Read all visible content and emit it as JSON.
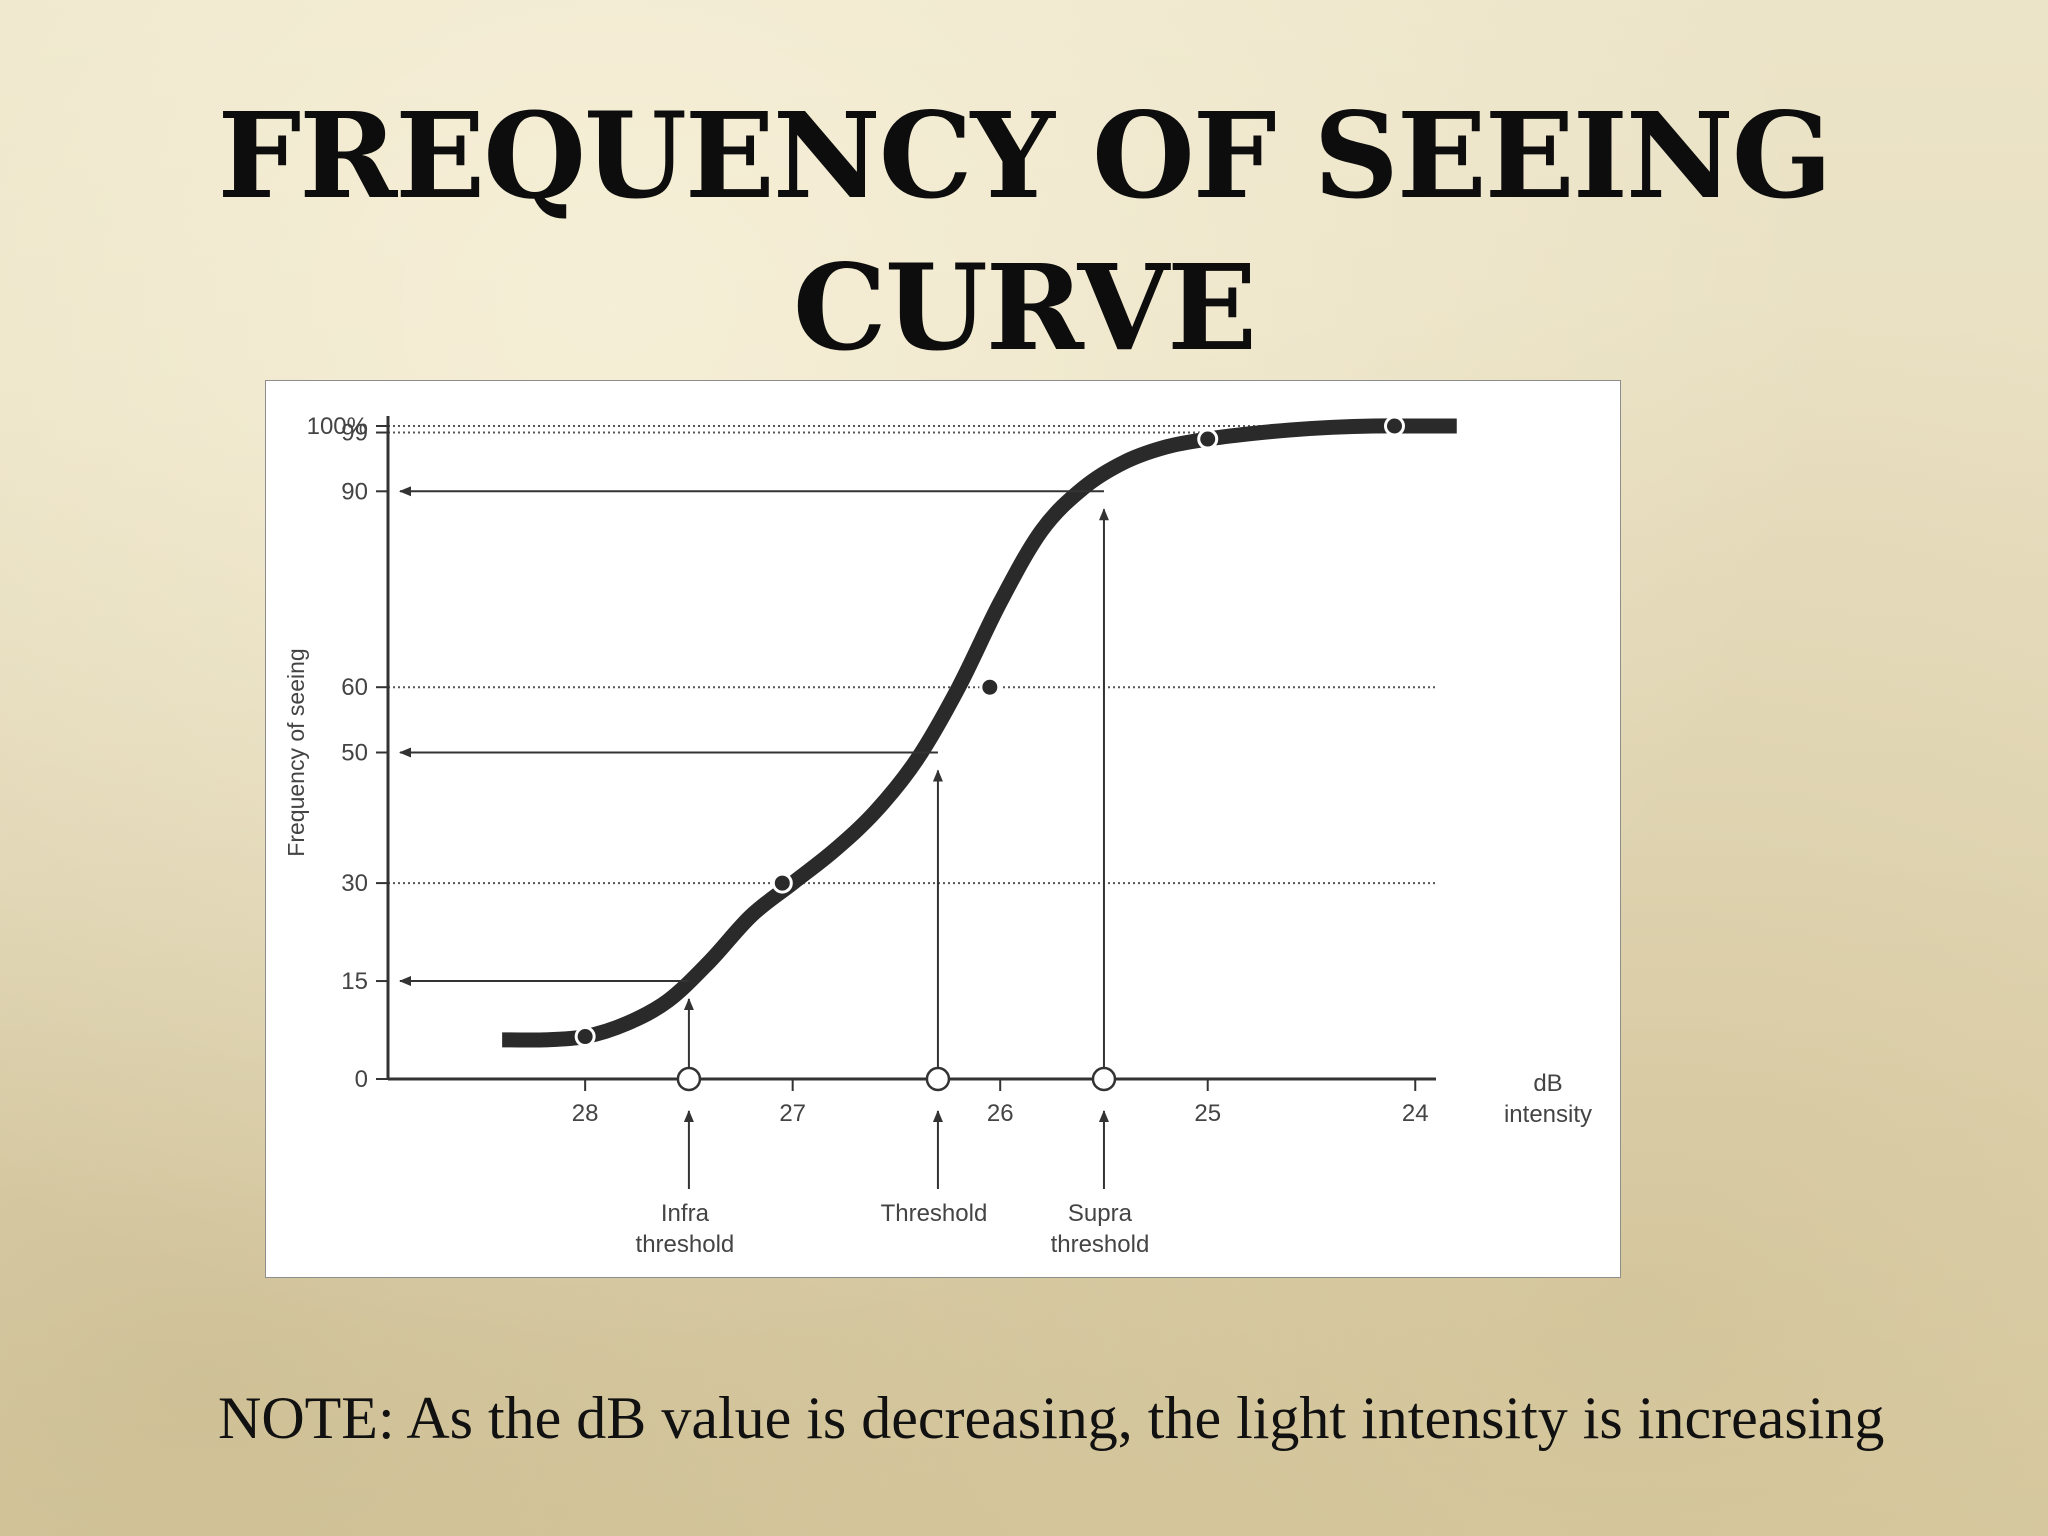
{
  "title": {
    "line1": "FREQUENCY OF SEEING",
    "line2": "CURVE"
  },
  "note": "NOTE:  As the dB value is decreasing, the light intensity is increasing",
  "chart_data": {
    "type": "line",
    "title": "",
    "ylabel": "Frequency of seeing",
    "xlabel": "dB intensity",
    "xlabel_lines": [
      "dB",
      "intensity"
    ],
    "x_reversed": true,
    "xlim": [
      28.95,
      23.9
    ],
    "ylim": [
      0,
      100
    ],
    "x_ticks": [
      28,
      27,
      26,
      25,
      24
    ],
    "y_ticks": [
      {
        "value": 0,
        "label": "0"
      },
      {
        "value": 15,
        "label": "15"
      },
      {
        "value": 30,
        "label": "30"
      },
      {
        "value": 50,
        "label": "50"
      },
      {
        "value": 60,
        "label": "60"
      },
      {
        "value": 90,
        "label": "90"
      },
      {
        "value": 99,
        "label": "99"
      },
      {
        "value": 100,
        "label": "100%"
      }
    ],
    "curve": [
      {
        "x": 28.4,
        "y": 6
      },
      {
        "x": 28.2,
        "y": 6
      },
      {
        "x": 28.0,
        "y": 6.5
      },
      {
        "x": 27.8,
        "y": 8.5
      },
      {
        "x": 27.6,
        "y": 12
      },
      {
        "x": 27.4,
        "y": 18
      },
      {
        "x": 27.2,
        "y": 25
      },
      {
        "x": 27.0,
        "y": 30
      },
      {
        "x": 26.8,
        "y": 35
      },
      {
        "x": 26.6,
        "y": 41
      },
      {
        "x": 26.4,
        "y": 49
      },
      {
        "x": 26.2,
        "y": 60
      },
      {
        "x": 26.0,
        "y": 73
      },
      {
        "x": 25.8,
        "y": 84
      },
      {
        "x": 25.6,
        "y": 90.5
      },
      {
        "x": 25.4,
        "y": 94.5
      },
      {
        "x": 25.2,
        "y": 96.8
      },
      {
        "x": 25.0,
        "y": 98
      },
      {
        "x": 24.8,
        "y": 98.8
      },
      {
        "x": 24.6,
        "y": 99.4
      },
      {
        "x": 24.4,
        "y": 99.8
      },
      {
        "x": 24.2,
        "y": 100
      },
      {
        "x": 24.0,
        "y": 100
      },
      {
        "x": 23.8,
        "y": 100
      }
    ],
    "marked_points": [
      {
        "x": 28.0,
        "y": 6.5
      },
      {
        "x": 27.05,
        "y": 30
      },
      {
        "x": 26.05,
        "y": 60
      },
      {
        "x": 25.0,
        "y": 98
      },
      {
        "x": 24.1,
        "y": 100
      }
    ],
    "dotted_levels": [
      100,
      99,
      60,
      30
    ],
    "annotations": [
      {
        "name": "infra-threshold",
        "x": 27.5,
        "y": 15,
        "label_lines": [
          "Infra",
          "threshold"
        ]
      },
      {
        "name": "threshold",
        "x": 26.3,
        "y": 50,
        "label_lines": [
          "Threshold"
        ]
      },
      {
        "name": "supra-threshold",
        "x": 25.5,
        "y": 90,
        "label_lines": [
          "Supra",
          "threshold"
        ]
      }
    ]
  }
}
